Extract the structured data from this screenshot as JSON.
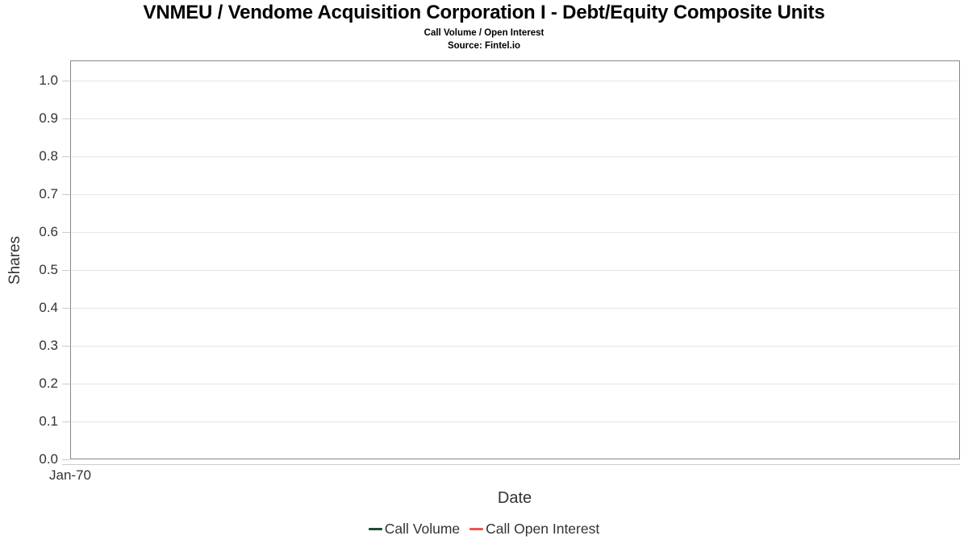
{
  "chart_data": {
    "type": "line",
    "title": "VNMEU / Vendome Acquisition Corporation I - Debt/Equity Composite Units",
    "subtitle": "Call Volume / Open Interest",
    "source": "Source: Fintel.io",
    "xlabel": "Date",
    "ylabel": "Shares",
    "ylim": [
      0.0,
      1.05
    ],
    "yticks": [
      "1.0",
      "0.9",
      "0.8",
      "0.7",
      "0.6",
      "0.5",
      "0.4",
      "0.3",
      "0.2",
      "0.1",
      "0.0"
    ],
    "xticks": [
      "Jan-70"
    ],
    "grid": true,
    "legend_position": "bottom",
    "series": [
      {
        "name": "Call Volume",
        "color": "#1d4c33",
        "x": [],
        "values": []
      },
      {
        "name": "Call Open Interest",
        "color": "#f4534e",
        "x": [],
        "values": []
      }
    ],
    "colors": {
      "plot_border": "#868686",
      "gridline": "#e6e6e6",
      "axis_line": "#cccccc",
      "tick_text": "#333333",
      "title_text": "#000000"
    }
  }
}
